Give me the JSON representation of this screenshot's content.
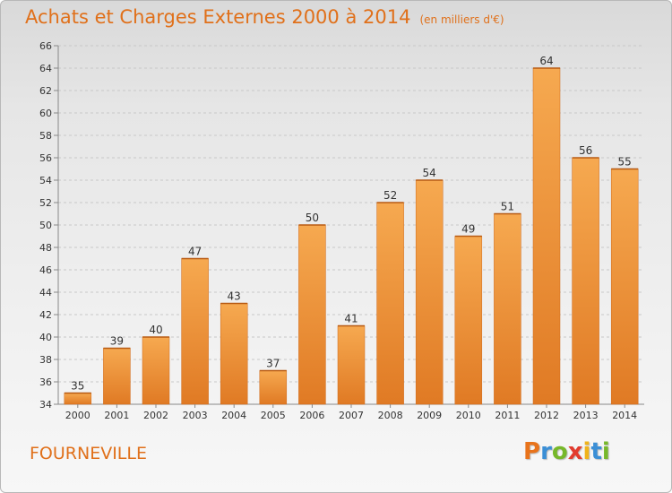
{
  "title": "Achats et Charges Externes 2000 à 2014",
  "subtitle": "(en milliers d'€)",
  "city": "FOURNEVILLE",
  "brand": {
    "letters": [
      "P",
      "r",
      "o",
      "x",
      "i",
      "t",
      "i"
    ],
    "colors": [
      "#e8731b",
      "#3b8fd6",
      "#77b82a",
      "#e23b2e",
      "#f0b31a",
      "#3b8fd6",
      "#77b82a"
    ]
  },
  "colors": {
    "accent": "#e0701a",
    "bar_light": "#f6a950",
    "bar_dark": "#e07a24",
    "grid": "#c8c8c8"
  },
  "chart_data": {
    "type": "bar",
    "categories": [
      "2000",
      "2001",
      "2002",
      "2003",
      "2004",
      "2005",
      "2006",
      "2007",
      "2008",
      "2009",
      "2010",
      "2011",
      "2012",
      "2013",
      "2014"
    ],
    "values": [
      35,
      39,
      40,
      47,
      43,
      37,
      50,
      41,
      52,
      54,
      49,
      51,
      64,
      56,
      55
    ],
    "data_labels": [
      "35",
      "39",
      "40",
      "47",
      "43",
      "37",
      "50",
      "41",
      "52",
      "54",
      "49",
      "51",
      "64",
      "56",
      "55"
    ],
    "title": "Achats et Charges Externes 2000 à 2014",
    "subtitle": "(en milliers d'€)",
    "xlabel": "",
    "ylabel": "",
    "ylim": [
      34,
      66
    ],
    "yticks": [
      34,
      36,
      38,
      40,
      42,
      44,
      46,
      48,
      50,
      52,
      54,
      56,
      58,
      60,
      62,
      64,
      66
    ],
    "grid": true,
    "legend": "none"
  }
}
